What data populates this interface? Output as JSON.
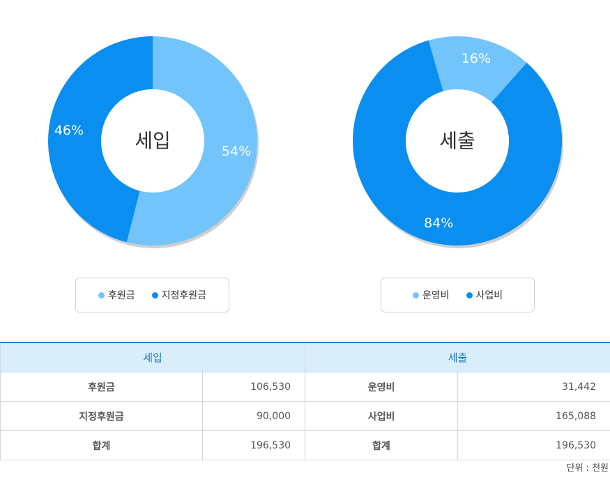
{
  "chart_data": [
    {
      "type": "pie",
      "center_label": "세입",
      "slices": [
        {
          "label": "후원금",
          "value": 54,
          "value_text": "54%",
          "color": "#74c4fc"
        },
        {
          "label": "지정후원금",
          "value": 46,
          "value_text": "46%",
          "color": "#0a8ef0"
        }
      ]
    },
    {
      "type": "pie",
      "center_label": "세출",
      "slices": [
        {
          "label": "운영비",
          "value": 16,
          "value_text": "16%",
          "color": "#74c4fc"
        },
        {
          "label": "사업비",
          "value": 84,
          "value_text": "84%",
          "color": "#0a8ef0"
        }
      ]
    }
  ],
  "legends": {
    "left": [
      {
        "label": "후원금",
        "color": "#74c4fc"
      },
      {
        "label": "지정후원금",
        "color": "#0a8ef0"
      }
    ],
    "right": [
      {
        "label": "운영비",
        "color": "#74c4fc"
      },
      {
        "label": "사업비",
        "color": "#0a8ef0"
      }
    ]
  },
  "table": {
    "header_left": "세입",
    "header_right": "세출",
    "rows": [
      {
        "left_label": "후원금",
        "left_value": "106,530",
        "right_label": "운영비",
        "right_value": "31,442"
      },
      {
        "left_label": "지정후원금",
        "left_value": "90,000",
        "right_label": "사업비",
        "right_value": "165,088"
      },
      {
        "left_label": "합계",
        "left_value": "196,530",
        "right_label": "합계",
        "right_value": "196,530"
      }
    ]
  },
  "unit_note": "단위 : 천원"
}
